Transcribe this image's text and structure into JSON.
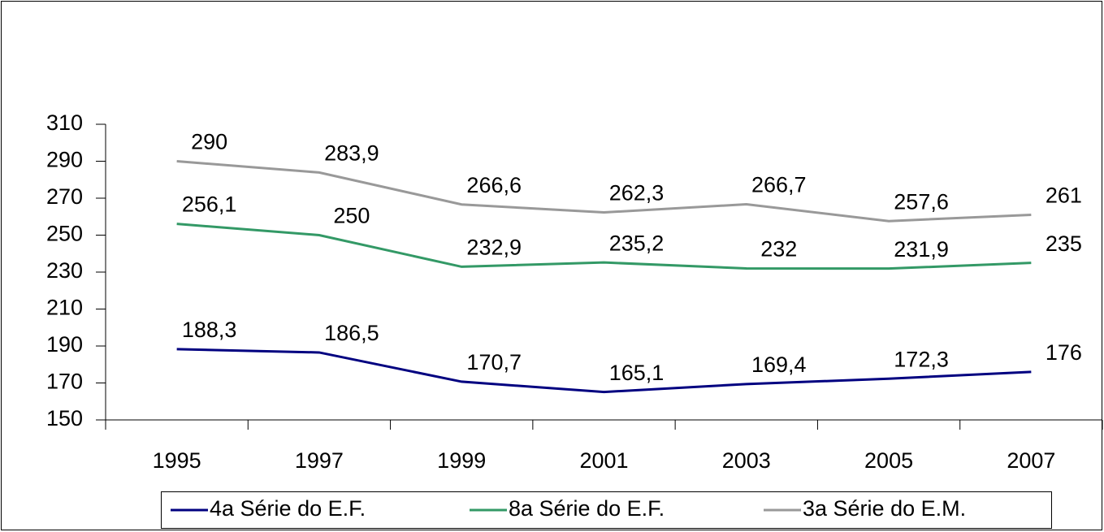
{
  "chart_data": {
    "type": "line",
    "categories": [
      "1995",
      "1997",
      "1999",
      "2001",
      "2003",
      "2005",
      "2007"
    ],
    "series": [
      {
        "name": "4a Série do E.F.",
        "color": "#000080",
        "values": [
          188.3,
          186.5,
          170.7,
          165.1,
          169.4,
          172.3,
          176
        ],
        "value_labels": [
          "188,3",
          "186,5",
          "170,7",
          "165,1",
          "169,4",
          "172,3",
          "176"
        ]
      },
      {
        "name": "8a Série do E.F.",
        "color": "#339966",
        "values": [
          256.1,
          250,
          232.9,
          235.2,
          232,
          231.9,
          235
        ],
        "value_labels": [
          "256,1",
          "250",
          "232,9",
          "235,2",
          "232",
          "231,9",
          "235"
        ]
      },
      {
        "name": "3a Série do E.M.",
        "color": "#999999",
        "values": [
          290,
          283.9,
          266.6,
          262.3,
          266.7,
          257.6,
          261
        ],
        "value_labels": [
          "290",
          "283,9",
          "266,6",
          "262,3",
          "266,7",
          "257,6",
          "261"
        ]
      }
    ],
    "ylim": [
      150,
      310
    ],
    "yticks": [
      150,
      170,
      190,
      210,
      230,
      250,
      270,
      290,
      310
    ],
    "legend": "bottom"
  }
}
